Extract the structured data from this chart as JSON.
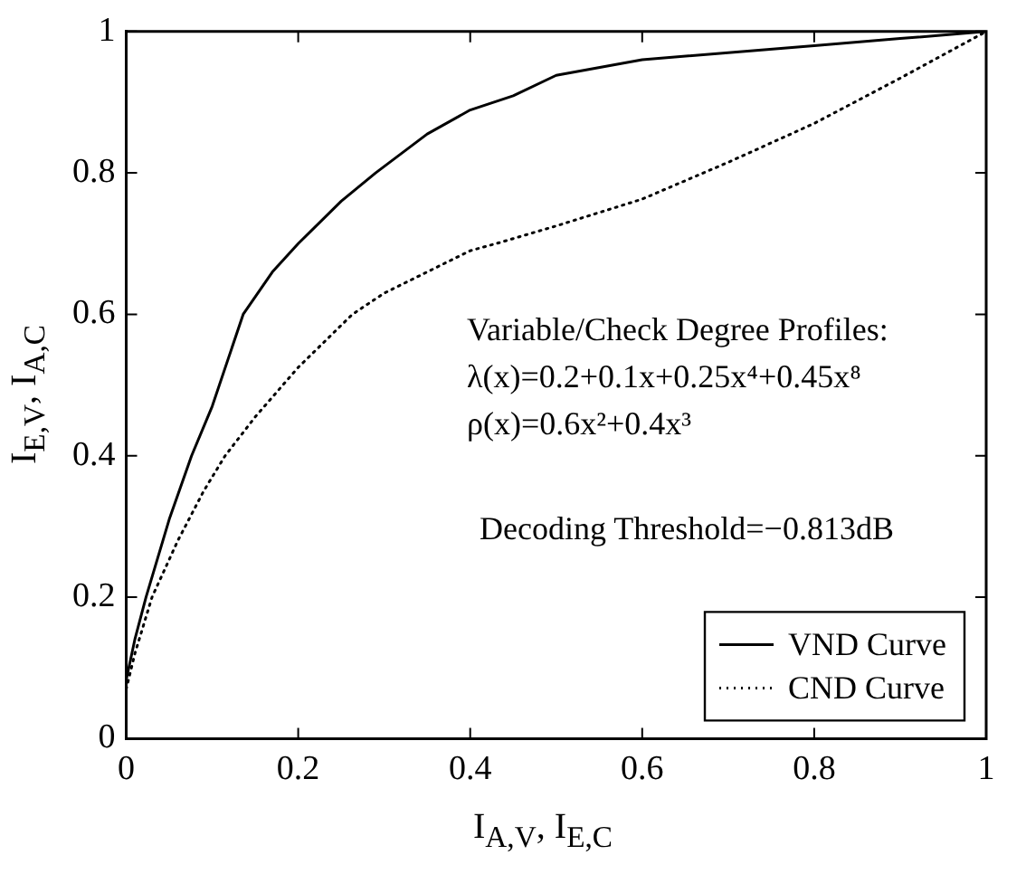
{
  "chart_data": {
    "type": "line",
    "xlabel": "I$_{A,V}$, I$_{E,C}$",
    "ylabel": "I$_{E,V}$, I$_{A,C}$",
    "series": [
      {
        "name": "VND Curve",
        "color": "#000000",
        "line_style": "solid",
        "x": [
          0,
          0.01,
          0.023,
          0.05,
          0.076,
          0.1,
          0.136,
          0.17,
          0.2,
          0.25,
          0.29,
          0.35,
          0.4,
          0.45,
          0.5,
          0.6,
          0.7,
          0.8,
          0.9,
          1
        ],
        "values": [
          0.083,
          0.14,
          0.2,
          0.31,
          0.4,
          0.47,
          0.6,
          0.66,
          0.7,
          0.76,
          0.8,
          0.855,
          0.889,
          0.909,
          0.938,
          0.96,
          0.97,
          0.98,
          0.99,
          1
        ]
      },
      {
        "name": "CND Curve",
        "color": "#000000",
        "line_style": "dotted",
        "x": [
          0,
          0.01,
          0.03,
          0.06,
          0.09,
          0.115,
          0.15,
          0.2,
          0.263,
          0.3,
          0.35,
          0.4,
          0.43,
          0.5,
          0.6,
          0.7,
          0.8,
          0.9,
          1
        ],
        "values": [
          0.07,
          0.12,
          0.2,
          0.28,
          0.35,
          0.4,
          0.455,
          0.525,
          0.6,
          0.63,
          0.66,
          0.69,
          0.7,
          0.725,
          0.763,
          0.815,
          0.87,
          0.934,
          1
        ]
      }
    ],
    "xlim": [
      0,
      1
    ],
    "ylim": [
      0,
      1
    ],
    "xticks": [
      0,
      0.2,
      0.4,
      0.6,
      0.8,
      1
    ],
    "yticks": [
      0,
      0.2,
      0.4,
      0.6,
      0.8,
      1
    ],
    "grid": false,
    "legend": "bottom right",
    "marker": "none",
    "annotations": [
      "Variable/Check Degree Profiles:",
      "λ(x)=0.2+0.1x+0.25x⁴+0.45x⁸",
      "ρ(x)=0.6x²+0.4x³",
      "Decoding Threshold=−0.813dB"
    ]
  }
}
